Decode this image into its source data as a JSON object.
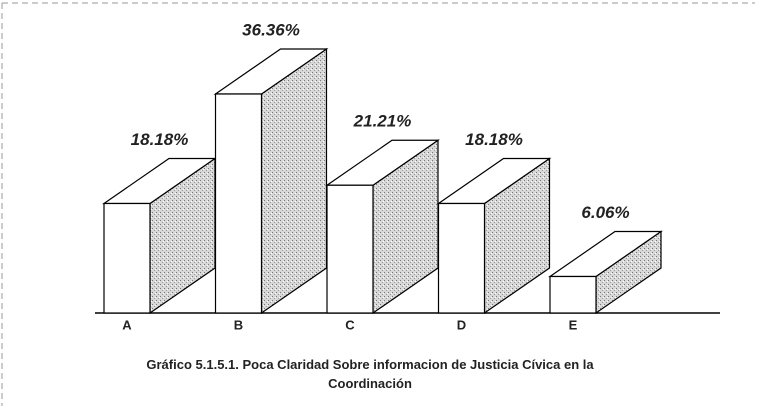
{
  "chart_data": {
    "type": "bar3d",
    "caption": "Gráfico 5.1.5.1. Poca Claridad Sobre informacion de Justicia Cívica en la Coordinación",
    "categories": [
      "A",
      "B",
      "C",
      "D",
      "E"
    ],
    "values": [
      18.18,
      36.36,
      21.21,
      18.18,
      6.06
    ],
    "value_labels": [
      "18.18%",
      "36.36%",
      "21.21%",
      "18.18%",
      "6.06%"
    ]
  }
}
